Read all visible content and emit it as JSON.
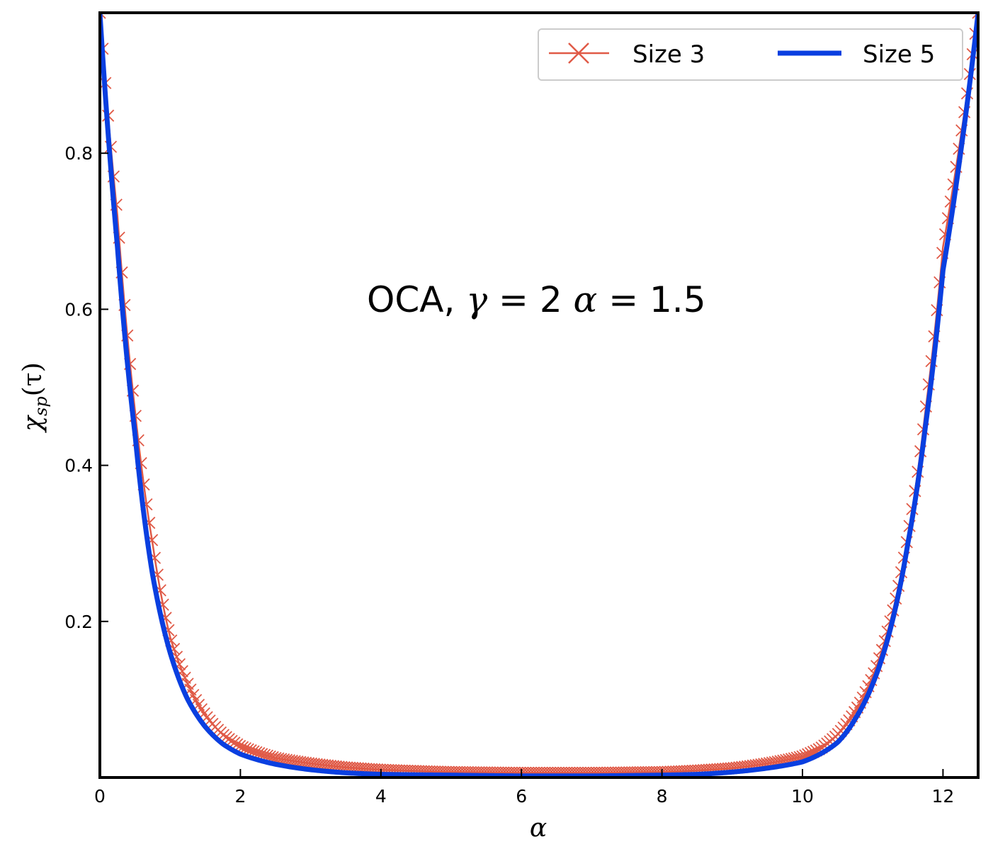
{
  "chart_data": {
    "type": "line",
    "xlabel": "α",
    "ylabel": "χ",
    "ylabel_sub": "sp",
    "ylabel_arg": "(τ)",
    "xlim": [
      0,
      12.5
    ],
    "ylim": [
      0.0,
      0.98
    ],
    "xticks": [
      0,
      2,
      4,
      6,
      8,
      10,
      12
    ],
    "xtick_labels": [
      "0",
      "2",
      "4",
      "6",
      "8",
      "10",
      "12"
    ],
    "yticks": [
      0.2,
      0.4,
      0.6,
      0.8
    ],
    "ytick_labels": [
      "0.2",
      "0.4",
      "0.6",
      "0.8"
    ],
    "grid": false,
    "legend_position": "top-right",
    "annotation": {
      "text_prefix": "OCA, ",
      "gamma_symbol": "γ",
      "gamma_text": " = 2 ",
      "alpha_symbol": "α",
      "alpha_text": " = 1.5"
    },
    "series": [
      {
        "name": "Size 3",
        "color": "#e05a47",
        "style": "line-x-markers",
        "x": [
          0.0,
          0.25,
          0.5,
          0.75,
          1.0,
          1.25,
          1.5,
          1.75,
          2.0,
          2.5,
          3.0,
          3.5,
          4.0,
          5.0,
          6.0,
          6.25,
          7.0,
          8.0,
          8.5,
          9.0,
          9.5,
          10.0,
          10.25,
          10.5,
          10.75,
          11.0,
          11.25,
          11.5,
          11.75,
          12.0,
          12.25,
          12.5
        ],
        "y": [
          0.98,
          0.72,
          0.47,
          0.3,
          0.18,
          0.12,
          0.08,
          0.055,
          0.04,
          0.025,
          0.018,
          0.013,
          0.01,
          0.007,
          0.006,
          0.006,
          0.006,
          0.007,
          0.009,
          0.012,
          0.018,
          0.027,
          0.037,
          0.055,
          0.085,
          0.13,
          0.2,
          0.31,
          0.47,
          0.68,
          0.82,
          0.98
        ]
      },
      {
        "name": "Size 5",
        "color": "#0a3fe0",
        "style": "line",
        "x": [
          0.0,
          0.25,
          0.5,
          0.75,
          1.0,
          1.25,
          1.5,
          1.75,
          2.0,
          2.5,
          3.0,
          3.5,
          4.0,
          5.0,
          6.0,
          6.25,
          7.0,
          8.0,
          8.5,
          9.0,
          9.5,
          10.0,
          10.25,
          10.5,
          10.75,
          11.0,
          11.25,
          11.5,
          11.75,
          12.0,
          12.25,
          12.5
        ],
        "y": [
          0.98,
          0.68,
          0.44,
          0.26,
          0.16,
          0.1,
          0.065,
          0.043,
          0.03,
          0.017,
          0.01,
          0.006,
          0.004,
          0.003,
          0.002,
          0.002,
          0.002,
          0.003,
          0.004,
          0.007,
          0.012,
          0.02,
          0.03,
          0.045,
          0.075,
          0.12,
          0.19,
          0.3,
          0.45,
          0.65,
          0.8,
          0.98
        ]
      }
    ]
  }
}
